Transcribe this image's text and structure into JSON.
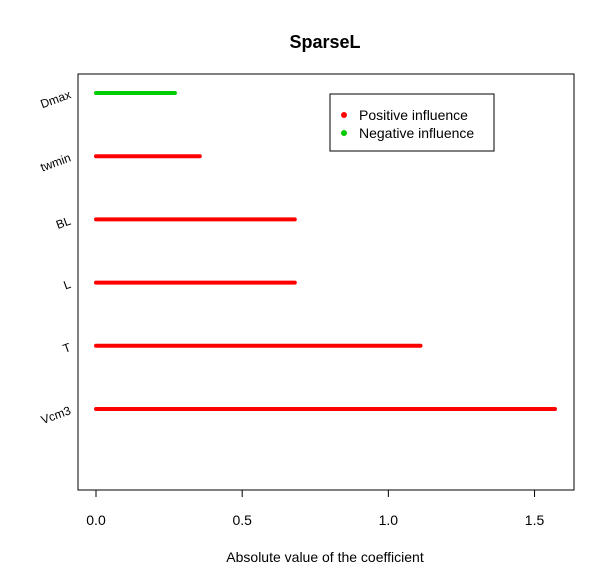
{
  "chart_data": {
    "type": "bar",
    "orientation": "horizontal",
    "title": "SparseL",
    "xlabel": "Absolute value of the coefficient",
    "ylabel": "",
    "categories": [
      "Vcm3",
      "T",
      "L",
      "BL",
      "twmin",
      "Dmax"
    ],
    "values": [
      1.57,
      1.11,
      0.68,
      0.68,
      0.355,
      0.27
    ],
    "influence": [
      "Positive influence",
      "Positive influence",
      "Positive influence",
      "Positive influence",
      "Positive influence",
      "Negative influence"
    ],
    "xlim": [
      0,
      1.57
    ],
    "xticks": [
      0.0,
      0.5,
      1.0,
      1.5
    ],
    "xtick_labels": [
      "0.0",
      "0.5",
      "1.0",
      "1.5"
    ],
    "grid": false,
    "legend": {
      "placement": "top-right",
      "entries": [
        {
          "label": "Positive influence",
          "color": "#ff0000"
        },
        {
          "label": "Negative influence",
          "color": "#00cc00"
        }
      ]
    },
    "colors": {
      "Positive influence": "#ff0000",
      "Negative influence": "#00cc00"
    }
  }
}
